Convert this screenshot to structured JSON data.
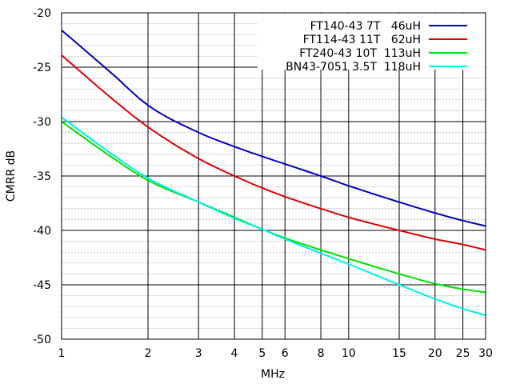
{
  "chart_data": {
    "type": "line",
    "title": "",
    "xlabel": "MHz",
    "ylabel": "CMRR dB",
    "xscale": "log",
    "xlim": [
      1,
      30
    ],
    "ylim": [
      -50,
      -20
    ],
    "grid": true,
    "legend_position": "top-right",
    "xticks": [
      {
        "value": 1,
        "label": "1"
      },
      {
        "value": 2,
        "label": "2"
      },
      {
        "value": 3,
        "label": "3"
      },
      {
        "value": 4,
        "label": "4"
      },
      {
        "value": 5,
        "label": "5"
      },
      {
        "value": 6,
        "label": "6"
      },
      {
        "value": 8,
        "label": "8"
      },
      {
        "value": 10,
        "label": "10"
      },
      {
        "value": 15,
        "label": "15"
      },
      {
        "value": 20,
        "label": "20"
      },
      {
        "value": 25,
        "label": "25"
      },
      {
        "value": 30,
        "label": "30"
      }
    ],
    "yticks": [
      {
        "value": -20,
        "label": "-20"
      },
      {
        "value": -25,
        "label": "-25"
      },
      {
        "value": -30,
        "label": "-30"
      },
      {
        "value": -35,
        "label": "-35"
      },
      {
        "value": -40,
        "label": "-40"
      },
      {
        "value": -45,
        "label": "-45"
      },
      {
        "value": -50,
        "label": "-50"
      }
    ],
    "x": [
      1,
      1.5,
      2,
      3,
      4,
      5,
      6,
      8,
      10,
      15,
      20,
      25,
      30
    ],
    "series": [
      {
        "name": "FT140-43 7T   46uH",
        "color": "#0000c0",
        "values": [
          -21.6,
          -25.6,
          -28.5,
          -31.0,
          -32.3,
          -33.2,
          -33.9,
          -35.0,
          -35.9,
          -37.4,
          -38.4,
          -39.1,
          -39.6
        ]
      },
      {
        "name": "FT114-43 11T   62uH",
        "color": "#e00000",
        "values": [
          -23.9,
          -27.9,
          -30.5,
          -33.4,
          -35.0,
          -36.1,
          -36.9,
          -38.0,
          -38.8,
          -40.0,
          -40.8,
          -41.3,
          -41.8
        ]
      },
      {
        "name": "FT240-43 10T  113uH",
        "color": "#00e000",
        "values": [
          -30.0,
          -33.3,
          -35.4,
          -37.4,
          -38.8,
          -39.9,
          -40.7,
          -41.8,
          -42.6,
          -44.0,
          -44.9,
          -45.4,
          -45.7
        ]
      },
      {
        "name": "BN43-7051 3.5T  118uH",
        "color": "#00eeee",
        "values": [
          -29.6,
          -33.0,
          -35.2,
          -37.4,
          -38.9,
          -39.9,
          -40.8,
          -42.1,
          -43.1,
          -45.0,
          -46.3,
          -47.2,
          -47.8
        ]
      }
    ]
  }
}
